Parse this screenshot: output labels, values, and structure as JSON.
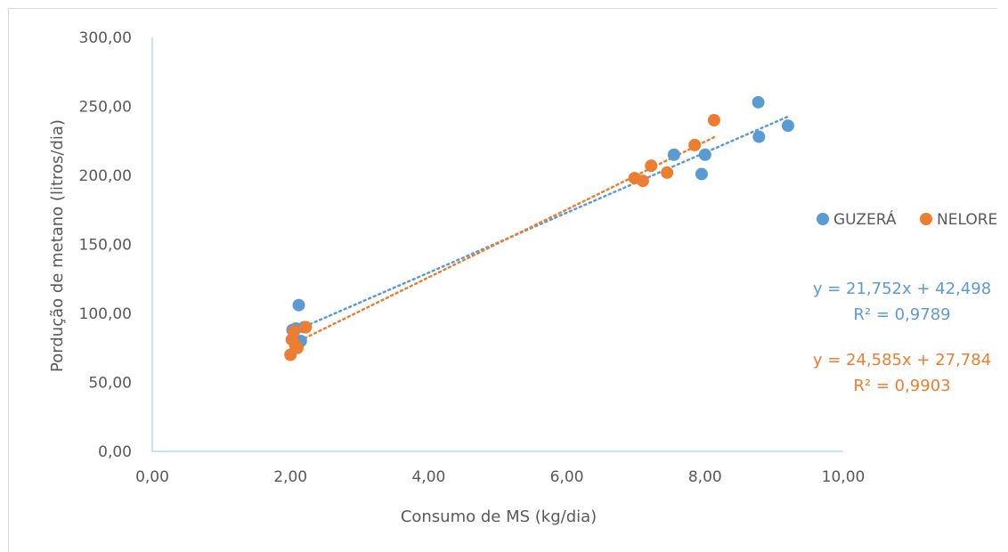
{
  "chart_data": {
    "type": "scatter",
    "xlabel": "Consumo de MS (kg/dia)",
    "ylabel": "Porduçã‌o de metano (litros/dia)",
    "xlim": [
      0,
      10
    ],
    "ylim": [
      0,
      300
    ],
    "x_ticks": [
      "0,00",
      "2,00",
      "4,00",
      "6,00",
      "8,00",
      "10,00"
    ],
    "y_ticks": [
      "0,00",
      "50,00",
      "100,00",
      "150,00",
      "200,00",
      "250,00",
      "300,00"
    ],
    "grid": false,
    "legend_position": "right",
    "series": [
      {
        "name": "GUZERÁ",
        "color": "#5b9bd5",
        "points": [
          {
            "x": 2.03,
            "y": 88
          },
          {
            "x": 2.08,
            "y": 89
          },
          {
            "x": 2.12,
            "y": 106
          },
          {
            "x": 2.15,
            "y": 80
          },
          {
            "x": 2.2,
            "y": 90
          },
          {
            "x": 7.55,
            "y": 215
          },
          {
            "x": 7.95,
            "y": 201
          },
          {
            "x": 8.0,
            "y": 215
          },
          {
            "x": 8.77,
            "y": 253
          },
          {
            "x": 8.78,
            "y": 228
          },
          {
            "x": 9.2,
            "y": 236
          }
        ],
        "trendline": {
          "equation": "y = 21,752x + 42,498",
          "r2": "R² = 0,9789",
          "slope": 21.752,
          "intercept": 42.498,
          "x_range": [
            2.0,
            9.2
          ]
        }
      },
      {
        "name": "NELORE",
        "color": "#ed7d31",
        "points": [
          {
            "x": 2.0,
            "y": 70
          },
          {
            "x": 2.02,
            "y": 81
          },
          {
            "x": 2.05,
            "y": 87
          },
          {
            "x": 2.07,
            "y": 77
          },
          {
            "x": 2.1,
            "y": 75
          },
          {
            "x": 2.22,
            "y": 90
          },
          {
            "x": 6.98,
            "y": 198
          },
          {
            "x": 7.1,
            "y": 196
          },
          {
            "x": 7.22,
            "y": 207
          },
          {
            "x": 7.45,
            "y": 202
          },
          {
            "x": 7.85,
            "y": 222
          },
          {
            "x": 8.13,
            "y": 240
          }
        ],
        "trendline": {
          "equation": "y = 24,585x + 27,784",
          "r2": "R² = 0,9903",
          "slope": 24.585,
          "intercept": 27.784,
          "x_range": [
            2.0,
            8.13
          ]
        }
      }
    ]
  }
}
